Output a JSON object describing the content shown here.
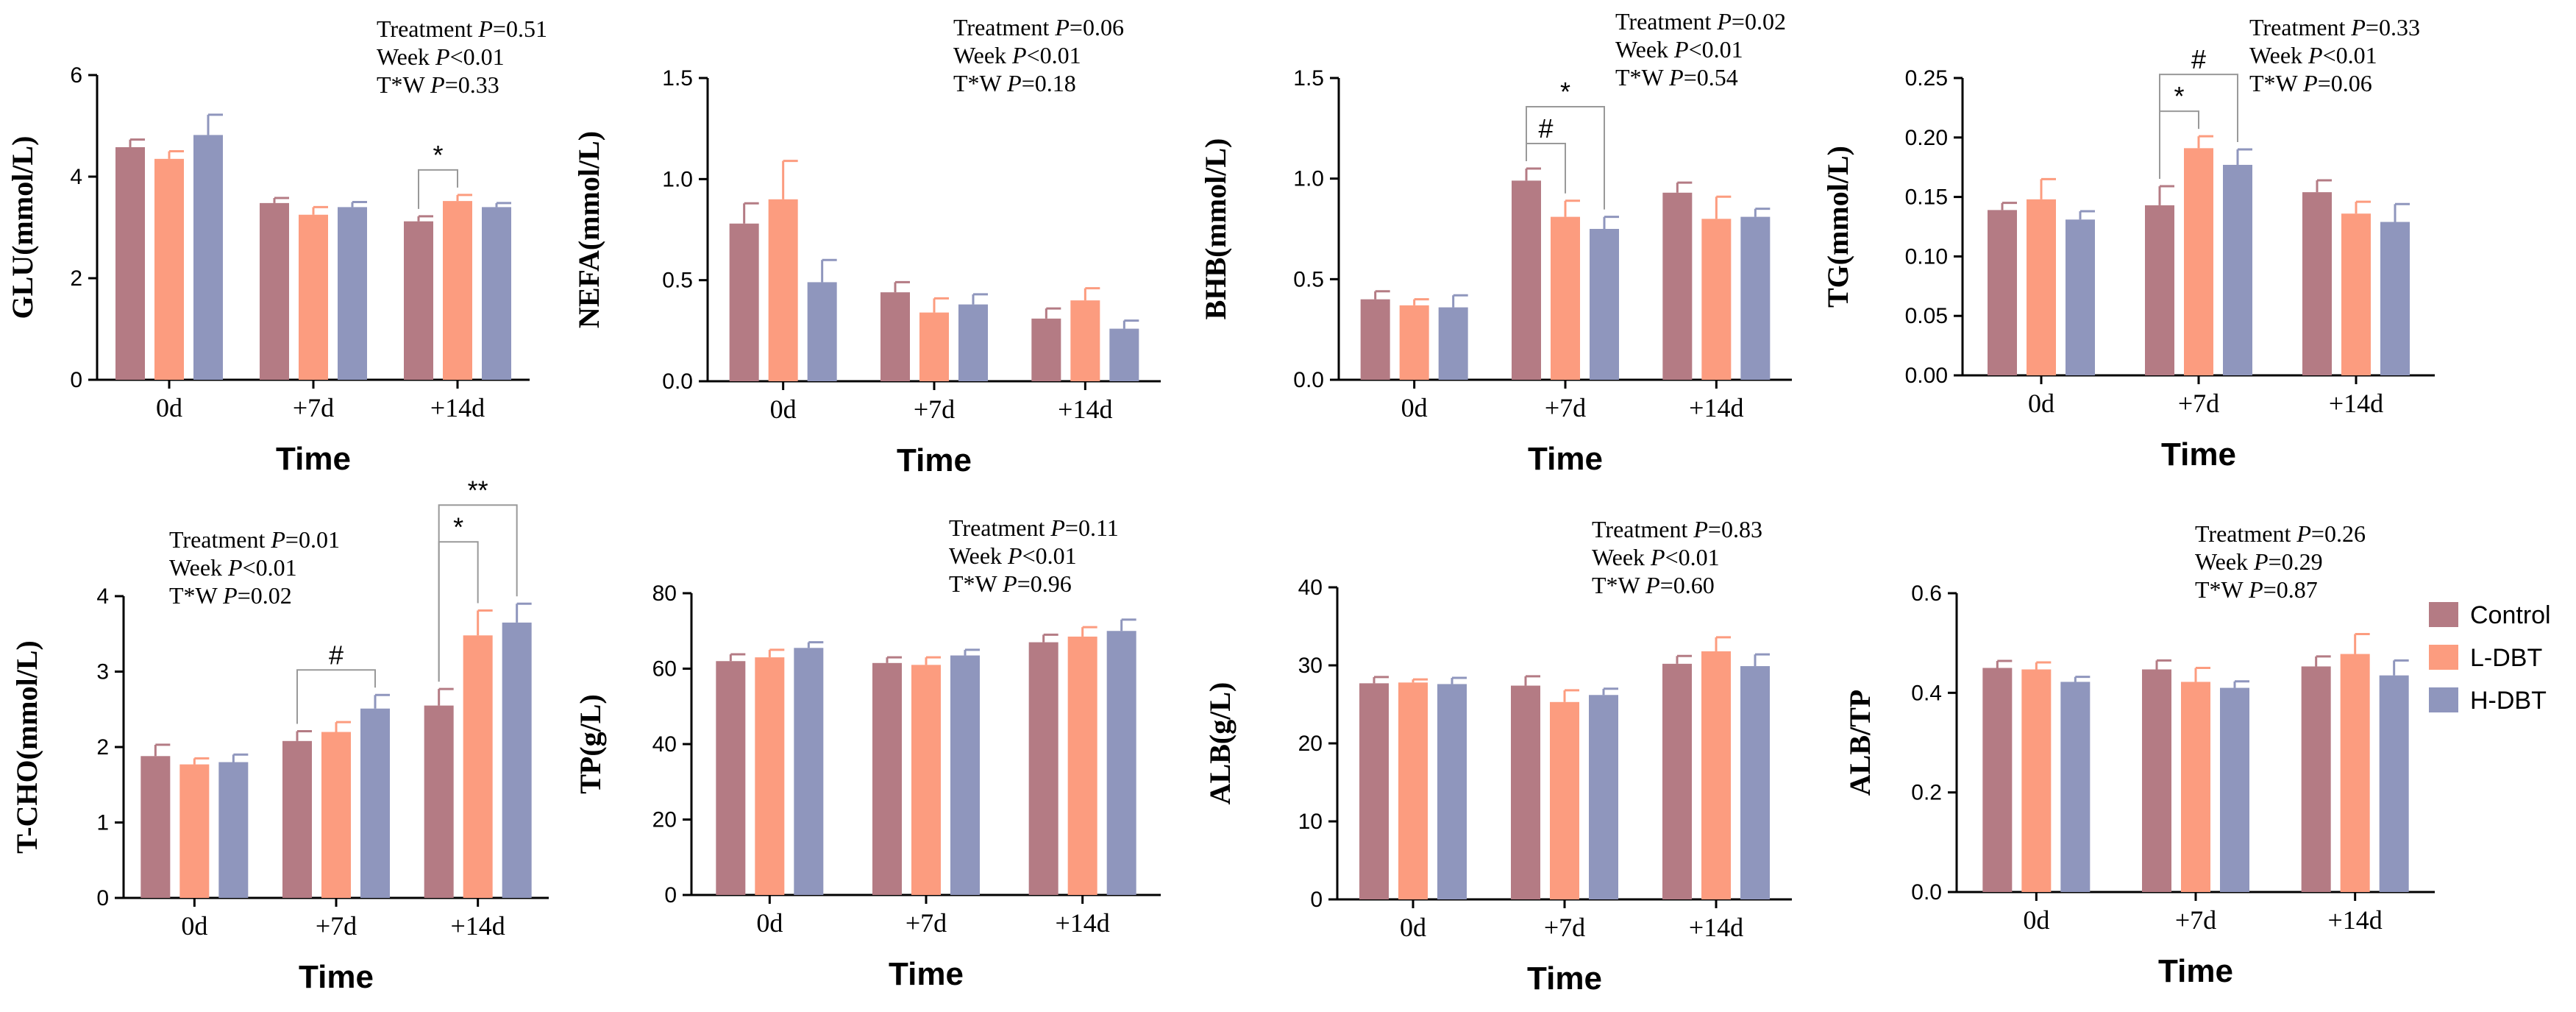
{
  "legend": [
    {
      "name": "Control",
      "color": "#b47b84"
    },
    {
      "name": "L-DBT",
      "color": "#fc9c7f"
    },
    {
      "name": "H-DBT",
      "color": "#8f96bd"
    }
  ],
  "chart_data": [
    {
      "type": "bar",
      "id": "glu",
      "ylabel": "GLU(mmol/L)",
      "xlabel": "Time",
      "categories": [
        "0d",
        "+7d",
        "+14d"
      ],
      "ylim": [
        0,
        6
      ],
      "yticks": [
        "0",
        "2",
        "4",
        "6"
      ],
      "series": [
        {
          "name": "Control",
          "values": [
            4.58,
            3.48,
            3.12
          ],
          "errors": [
            0.15,
            0.1,
            0.1
          ]
        },
        {
          "name": "L-DBT",
          "values": [
            4.35,
            3.25,
            3.52
          ],
          "errors": [
            0.15,
            0.15,
            0.12
          ]
        },
        {
          "name": "H-DBT",
          "values": [
            4.82,
            3.4,
            3.4
          ],
          "errors": [
            0.4,
            0.1,
            0.08
          ]
        }
      ],
      "stats": [
        "Treatment P=0.51",
        "Week P<0.01",
        "T*W P=0.33"
      ],
      "annotations": [
        {
          "label": "*",
          "category": 2,
          "from": 0,
          "to": 1
        }
      ]
    },
    {
      "type": "bar",
      "id": "nefa",
      "ylabel": "NEFA(mmol/L)",
      "xlabel": "Time",
      "categories": [
        "0d",
        "+7d",
        "+14d"
      ],
      "ylim": [
        0,
        1.5
      ],
      "yticks": [
        "0.0",
        "0.5",
        "1.0",
        "1.5"
      ],
      "series": [
        {
          "name": "Control",
          "values": [
            0.78,
            0.44,
            0.31
          ],
          "errors": [
            0.1,
            0.05,
            0.05
          ]
        },
        {
          "name": "L-DBT",
          "values": [
            0.9,
            0.34,
            0.4
          ],
          "errors": [
            0.19,
            0.07,
            0.06
          ]
        },
        {
          "name": "H-DBT",
          "values": [
            0.49,
            0.38,
            0.26
          ],
          "errors": [
            0.11,
            0.05,
            0.04
          ]
        }
      ],
      "stats": [
        "Treatment P=0.06",
        "Week P<0.01",
        "T*W P=0.18"
      ],
      "annotations": []
    },
    {
      "type": "bar",
      "id": "bhb",
      "ylabel": "BHB(mmol/L)",
      "xlabel": "Time",
      "categories": [
        "0d",
        "+7d",
        "+14d"
      ],
      "ylim": [
        0,
        1.5
      ],
      "yticks": [
        "0.0",
        "0.5",
        "1.0",
        "1.5"
      ],
      "series": [
        {
          "name": "Control",
          "values": [
            0.4,
            0.99,
            0.93
          ],
          "errors": [
            0.04,
            0.06,
            0.05
          ]
        },
        {
          "name": "L-DBT",
          "values": [
            0.37,
            0.81,
            0.8
          ],
          "errors": [
            0.03,
            0.08,
            0.11
          ]
        },
        {
          "name": "H-DBT",
          "values": [
            0.36,
            0.75,
            0.81
          ],
          "errors": [
            0.06,
            0.06,
            0.04
          ]
        }
      ],
      "stats": [
        "Treatment P=0.02",
        "Week P<0.01",
        "T*W P=0.54"
      ],
      "annotations": [
        {
          "label": "#",
          "category": 1,
          "from": 0,
          "to": 1
        },
        {
          "label": "*",
          "category": 1,
          "from": 0,
          "to": 2
        }
      ]
    },
    {
      "type": "bar",
      "id": "tg",
      "ylabel": "TG(mmol/L)",
      "xlabel": "Time",
      "categories": [
        "0d",
        "+7d",
        "+14d"
      ],
      "ylim": [
        0,
        0.25
      ],
      "yticks": [
        "0.00",
        "0.05",
        "0.10",
        "0.15",
        "0.20",
        "0.25"
      ],
      "series": [
        {
          "name": "Control",
          "values": [
            0.139,
            0.143,
            0.154
          ],
          "errors": [
            0.006,
            0.016,
            0.01
          ]
        },
        {
          "name": "L-DBT",
          "values": [
            0.148,
            0.191,
            0.136
          ],
          "errors": [
            0.017,
            0.01,
            0.01
          ]
        },
        {
          "name": "H-DBT",
          "values": [
            0.131,
            0.177,
            0.129
          ],
          "errors": [
            0.007,
            0.013,
            0.015
          ]
        }
      ],
      "stats": [
        "Treatment P=0.33",
        "Week P<0.01",
        "T*W P=0.06"
      ],
      "annotations": [
        {
          "label": "*",
          "category": 1,
          "from": 0,
          "to": 1
        },
        {
          "label": "#",
          "category": 1,
          "from": 0,
          "to": 2
        }
      ]
    },
    {
      "type": "bar",
      "id": "tcho",
      "ylabel": "T-CHO(mmol/L)",
      "xlabel": "Time",
      "categories": [
        "0d",
        "+7d",
        "+14d"
      ],
      "ylim": [
        0,
        4
      ],
      "yticks": [
        "0",
        "1",
        "2",
        "3",
        "4"
      ],
      "series": [
        {
          "name": "Control",
          "values": [
            1.88,
            2.08,
            2.55
          ],
          "errors": [
            0.15,
            0.13,
            0.22
          ]
        },
        {
          "name": "L-DBT",
          "values": [
            1.77,
            2.2,
            3.48
          ],
          "errors": [
            0.08,
            0.13,
            0.33
          ]
        },
        {
          "name": "H-DBT",
          "values": [
            1.8,
            2.51,
            3.65
          ],
          "errors": [
            0.1,
            0.18,
            0.25
          ]
        }
      ],
      "stats": [
        "Treatment P=0.01",
        "Week P<0.01",
        "T*W P=0.02"
      ],
      "annotations": [
        {
          "label": "#",
          "category": 1,
          "from": 0,
          "to": 2
        },
        {
          "label": "*",
          "category": 2,
          "from": 0,
          "to": 1
        },
        {
          "label": "**",
          "category": 2,
          "from": 0,
          "to": 2
        }
      ]
    },
    {
      "type": "bar",
      "id": "tp",
      "ylabel": "TP(g/L)",
      "xlabel": "Time",
      "categories": [
        "0d",
        "+7d",
        "+14d"
      ],
      "ylim": [
        0,
        80
      ],
      "yticks": [
        "0",
        "20",
        "40",
        "60",
        "80"
      ],
      "series": [
        {
          "name": "Control",
          "values": [
            62,
            61.5,
            67
          ],
          "errors": [
            1.8,
            1.5,
            2
          ]
        },
        {
          "name": "L-DBT",
          "values": [
            63,
            61,
            68.5
          ],
          "errors": [
            2,
            2,
            2.5
          ]
        },
        {
          "name": "H-DBT",
          "values": [
            65.5,
            63.5,
            70
          ],
          "errors": [
            1.5,
            1.5,
            3
          ]
        }
      ],
      "stats": [
        "Treatment P=0.11",
        "Week P<0.01",
        "T*W P=0.96"
      ],
      "annotations": []
    },
    {
      "type": "bar",
      "id": "alb",
      "ylabel": "ALB(g/L)",
      "xlabel": "Time",
      "categories": [
        "0d",
        "+7d",
        "+14d"
      ],
      "ylim": [
        0,
        40
      ],
      "yticks": [
        "0",
        "10",
        "20",
        "30",
        "40"
      ],
      "series": [
        {
          "name": "Control",
          "values": [
            27.7,
            27.4,
            30.2
          ],
          "errors": [
            0.8,
            1.2,
            1
          ]
        },
        {
          "name": "L-DBT",
          "values": [
            27.8,
            25.3,
            31.8
          ],
          "errors": [
            0.4,
            1.5,
            1.8
          ]
        },
        {
          "name": "H-DBT",
          "values": [
            27.6,
            26.2,
            29.9
          ],
          "errors": [
            0.8,
            0.8,
            1.5
          ]
        }
      ],
      "stats": [
        "Treatment P=0.83",
        "Week P<0.01",
        "T*W P=0.60"
      ],
      "annotations": []
    },
    {
      "type": "bar",
      "id": "albtp",
      "ylabel": "ALB/TP",
      "xlabel": "Time",
      "categories": [
        "0d",
        "+7d",
        "+14d"
      ],
      "ylim": [
        0,
        0.6
      ],
      "yticks": [
        "0.0",
        "0.2",
        "0.4",
        "0.6"
      ],
      "series": [
        {
          "name": "Control",
          "values": [
            0.45,
            0.447,
            0.453
          ],
          "errors": [
            0.014,
            0.018,
            0.02
          ]
        },
        {
          "name": "L-DBT",
          "values": [
            0.447,
            0.422,
            0.478
          ],
          "errors": [
            0.014,
            0.028,
            0.04
          ]
        },
        {
          "name": "H-DBT",
          "values": [
            0.422,
            0.41,
            0.435
          ],
          "errors": [
            0.01,
            0.013,
            0.03
          ]
        }
      ],
      "stats": [
        "Treatment P=0.26",
        "Week P=0.29",
        "T*W P=0.87"
      ],
      "annotations": []
    }
  ]
}
